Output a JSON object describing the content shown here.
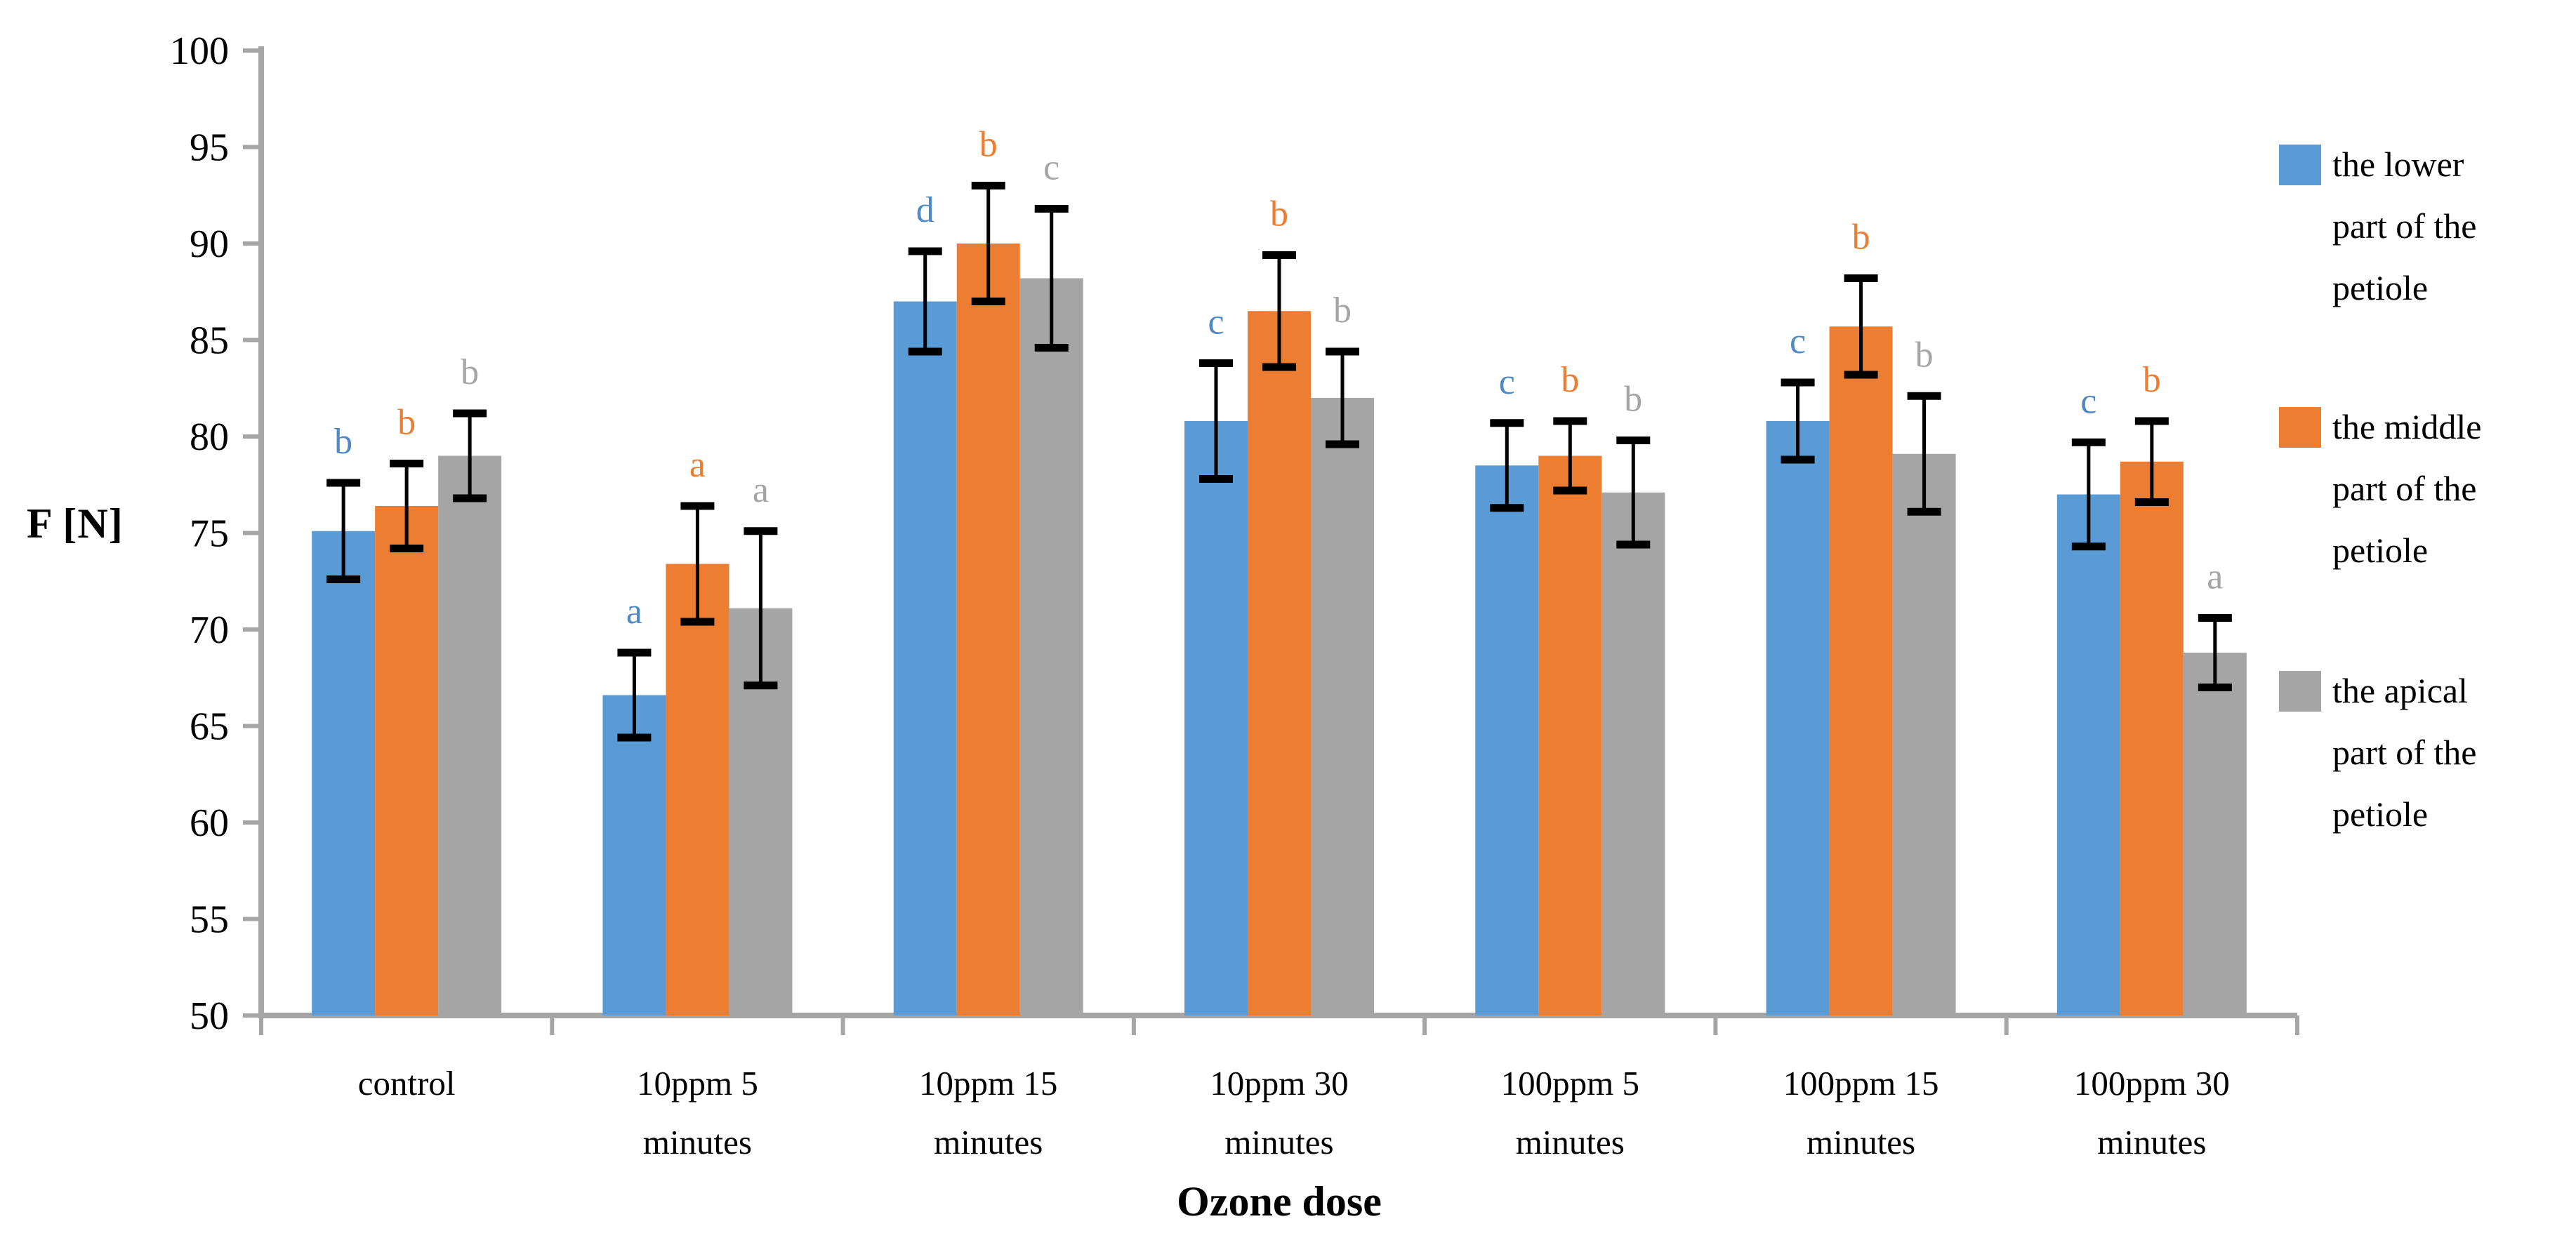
{
  "chart_data": {
    "type": "bar",
    "title": "",
    "xlabel": "Ozone dose",
    "ylabel": "F [N]",
    "ylim": [
      50,
      100
    ],
    "ytick_step": 5,
    "yticks": [
      100,
      95,
      90,
      85,
      80,
      75,
      70,
      65,
      60,
      55,
      50
    ],
    "grid": false,
    "legend_position": "right",
    "error_bars": true,
    "categories": [
      "control",
      "10ppm 5 minutes",
      "10ppm 15 minutes",
      "10ppm 30 minutes",
      "100ppm 5 minutes",
      "100ppm 15 minutes",
      "100ppm 30 minutes"
    ],
    "series": [
      {
        "name": "the lower part of the petiole",
        "color": "#5B9BD5",
        "letter_color": "#4E8AC8",
        "values": [
          75.1,
          66.6,
          87.0,
          80.8,
          78.5,
          80.8,
          77.0
        ],
        "errors": [
          2.5,
          2.2,
          2.6,
          3.0,
          2.2,
          2.0,
          2.7
        ],
        "letters": [
          "b",
          "a",
          "d",
          "c",
          "c",
          "c",
          "c"
        ]
      },
      {
        "name": "the middle part of the petiole",
        "color": "#ED7D31",
        "letter_color": "#ED7D31",
        "values": [
          76.4,
          73.4,
          90.0,
          86.5,
          79.0,
          85.7,
          78.7
        ],
        "errors": [
          2.2,
          3.0,
          3.0,
          2.9,
          1.8,
          2.5,
          2.1
        ],
        "letters": [
          "b",
          "a",
          "b",
          "b",
          "b",
          "b",
          "b"
        ]
      },
      {
        "name": "the apical part of the petiole",
        "color": "#A5A5A5",
        "letter_color": "#A5A5A5",
        "values": [
          79.0,
          71.1,
          88.2,
          82.0,
          77.1,
          79.1,
          68.8
        ],
        "errors": [
          2.2,
          4.0,
          3.6,
          2.4,
          2.7,
          3.0,
          1.8
        ],
        "letters": [
          "b",
          "a",
          "c",
          "b",
          "b",
          "b",
          "a"
        ]
      }
    ],
    "axis_color": "#A6A6A6",
    "error_bar_color": "#000000"
  }
}
